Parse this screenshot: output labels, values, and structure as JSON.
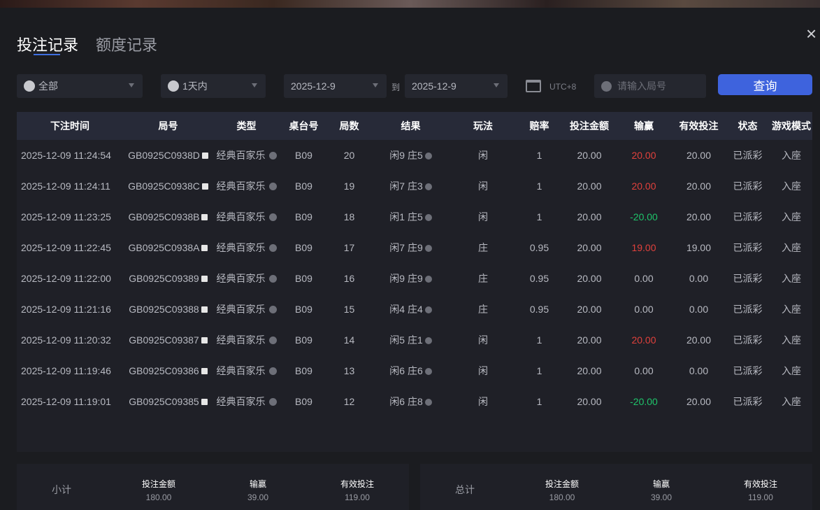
{
  "tabs": [
    {
      "label": "投注记录",
      "active": true
    },
    {
      "label": "额度记录",
      "active": false
    }
  ],
  "filters": {
    "game": "全部",
    "range": "1天内",
    "date_from": "2025-12-9",
    "to_label": "到",
    "date_to": "2025-12-9",
    "timezone": "UTC+8",
    "round_placeholder": "请输入局号",
    "query_label": "查询"
  },
  "colors": {
    "accent": "#3e63dd",
    "win": "#e0413c",
    "loss": "#1fc36a"
  },
  "table": {
    "headers": [
      "下注时间",
      "局号",
      "类型",
      "桌台号",
      "局数",
      "结果",
      "玩法",
      "赔率",
      "投注金额",
      "输赢",
      "有效投注",
      "状态",
      "游戏模式"
    ],
    "rows": [
      [
        "2025-12-09 11:24:54",
        "GB0925C0938D",
        "经典百家乐",
        "B09",
        "20",
        "闲9 庄5",
        "闲",
        "1",
        "20.00",
        "20.00",
        "20.00",
        "已派彩",
        "入座",
        "red"
      ],
      [
        "2025-12-09 11:24:11",
        "GB0925C0938C",
        "经典百家乐",
        "B09",
        "19",
        "闲7 庄3",
        "闲",
        "1",
        "20.00",
        "20.00",
        "20.00",
        "已派彩",
        "入座",
        "red"
      ],
      [
        "2025-12-09 11:23:25",
        "GB0925C0938B",
        "经典百家乐",
        "B09",
        "18",
        "闲1 庄5",
        "闲",
        "1",
        "20.00",
        "-20.00",
        "20.00",
        "已派彩",
        "入座",
        "green"
      ],
      [
        "2025-12-09 11:22:45",
        "GB0925C0938A",
        "经典百家乐",
        "B09",
        "17",
        "闲7 庄9",
        "庄",
        "0.95",
        "20.00",
        "19.00",
        "19.00",
        "已派彩",
        "入座",
        "red"
      ],
      [
        "2025-12-09 11:22:00",
        "GB0925C09389",
        "经典百家乐",
        "B09",
        "16",
        "闲9 庄9",
        "庄",
        "0.95",
        "20.00",
        "0.00",
        "0.00",
        "已派彩",
        "入座",
        ""
      ],
      [
        "2025-12-09 11:21:16",
        "GB0925C09388",
        "经典百家乐",
        "B09",
        "15",
        "闲4 庄4",
        "庄",
        "0.95",
        "20.00",
        "0.00",
        "0.00",
        "已派彩",
        "入座",
        ""
      ],
      [
        "2025-12-09 11:20:32",
        "GB0925C09387",
        "经典百家乐",
        "B09",
        "14",
        "闲5 庄1",
        "闲",
        "1",
        "20.00",
        "20.00",
        "20.00",
        "已派彩",
        "入座",
        "red"
      ],
      [
        "2025-12-09 11:19:46",
        "GB0925C09386",
        "经典百家乐",
        "B09",
        "13",
        "闲6 庄6",
        "闲",
        "1",
        "20.00",
        "0.00",
        "0.00",
        "已派彩",
        "入座",
        ""
      ],
      [
        "2025-12-09 11:19:01",
        "GB0925C09385",
        "经典百家乐",
        "B09",
        "12",
        "闲6 庄8",
        "闲",
        "1",
        "20.00",
        "-20.00",
        "20.00",
        "已派彩",
        "入座",
        "green"
      ]
    ]
  },
  "subtotal": {
    "label": "小计",
    "bet_label": "投注金额",
    "bet": "180.00",
    "win_label": "输赢",
    "win": "39.00",
    "valid_label": "有效投注",
    "valid": "119.00"
  },
  "total": {
    "label": "总计",
    "bet_label": "投注金额",
    "bet": "180.00",
    "win_label": "输赢",
    "win": "39.00",
    "valid_label": "有效投注",
    "valid": "119.00"
  }
}
